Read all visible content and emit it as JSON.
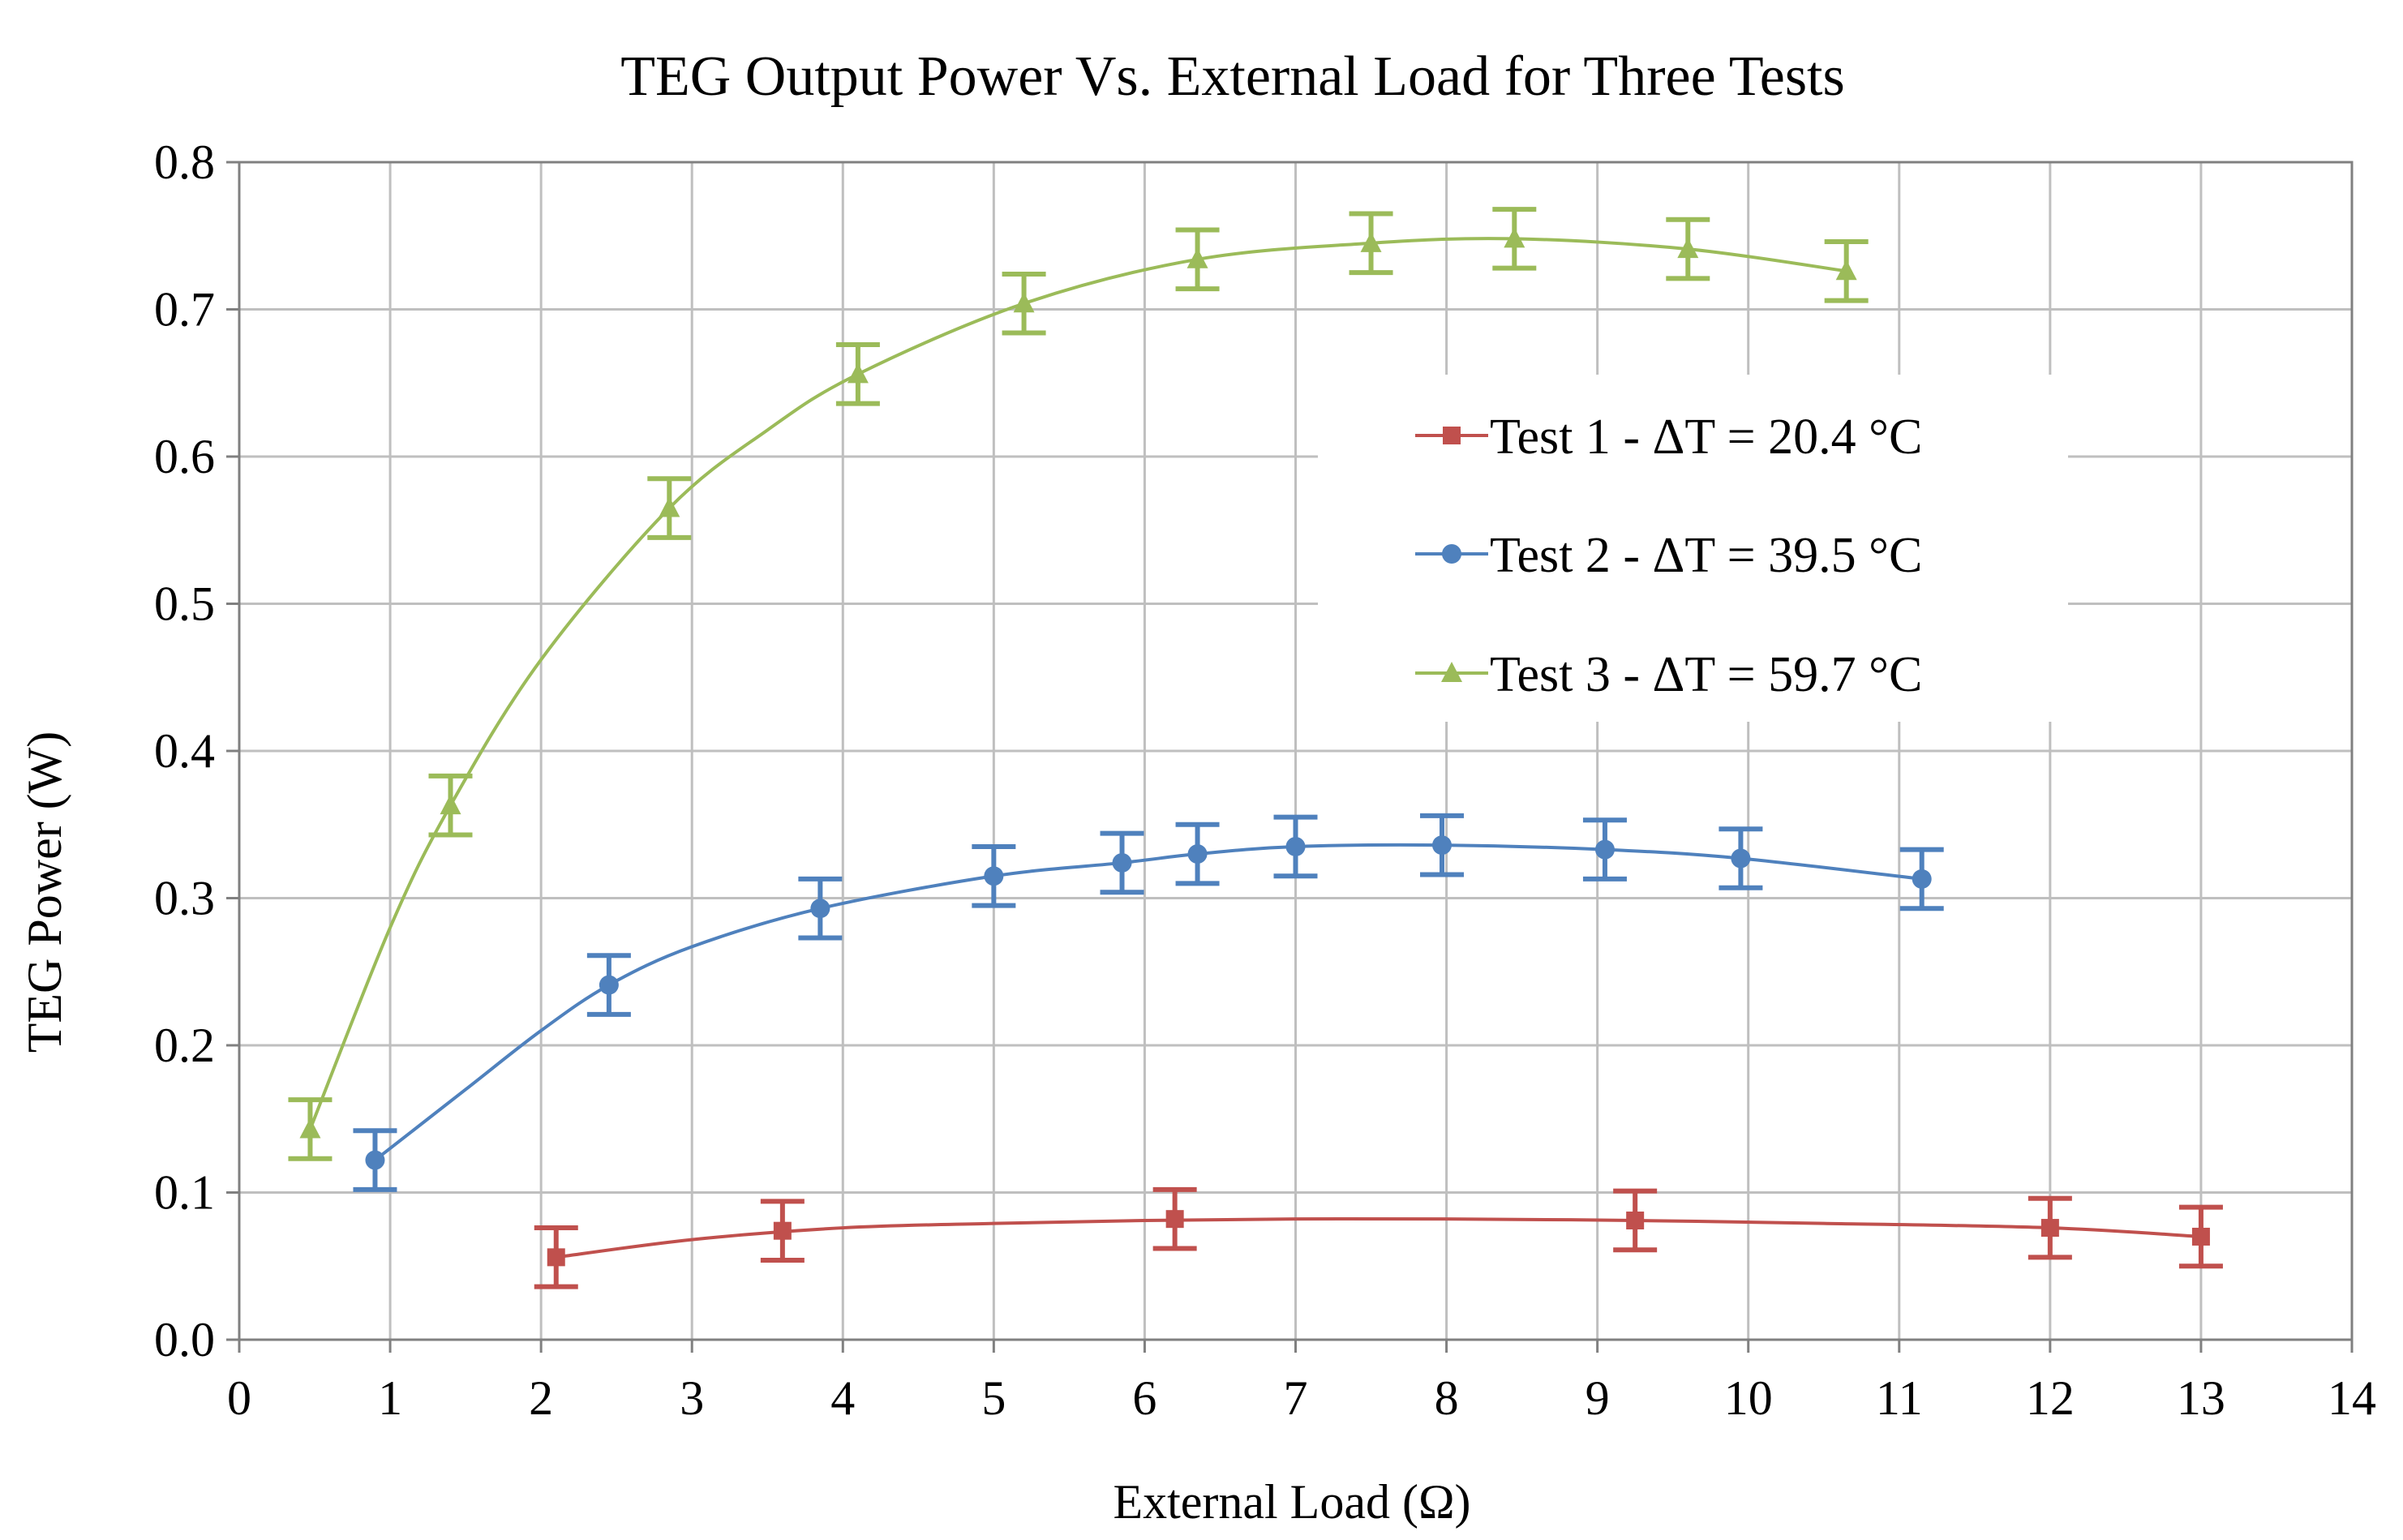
{
  "chart_data": {
    "type": "scatter",
    "title": "TEG Output Power Vs. External Load for Three Tests",
    "xlabel": "External Load (Ω)",
    "ylabel": "TEG Power (W)",
    "xlim": [
      0,
      14
    ],
    "ylim": [
      0,
      0.8
    ],
    "x_ticks": [
      "0",
      "1",
      "2",
      "3",
      "4",
      "5",
      "6",
      "7",
      "8",
      "9",
      "10",
      "11",
      "12",
      "13",
      "14"
    ],
    "y_ticks": [
      "0.0",
      "0.1",
      "0.2",
      "0.3",
      "0.4",
      "0.5",
      "0.6",
      "0.7",
      "0.8"
    ],
    "grid": true,
    "legend_position": "right-center",
    "series": [
      {
        "name": "Test 1 - ΔT = 20.4 °C",
        "color": "#C0504D",
        "marker": "square",
        "x": [
          2.1,
          3.6,
          6.2,
          9.25,
          12.0,
          13.0
        ],
        "y": [
          0.056,
          0.074,
          0.082,
          0.081,
          0.076,
          0.07
        ],
        "err": [
          0.02,
          0.02,
          0.02,
          0.02,
          0.02,
          0.02
        ],
        "curve": [
          [
            2.1,
            0.056
          ],
          [
            3.0,
            0.068
          ],
          [
            4.0,
            0.076
          ],
          [
            5.0,
            0.079
          ],
          [
            6.0,
            0.081
          ],
          [
            7.0,
            0.082
          ],
          [
            8.0,
            0.082
          ],
          [
            9.25,
            0.081
          ],
          [
            10.5,
            0.079
          ],
          [
            12.0,
            0.076
          ],
          [
            13.0,
            0.07
          ]
        ]
      },
      {
        "name": "Test 2 - ΔT = 39.5 °C",
        "color": "#4F81BD",
        "marker": "circle",
        "x": [
          0.9,
          2.45,
          3.85,
          5.0,
          5.85,
          6.35,
          7.0,
          7.97,
          9.05,
          9.95,
          11.15
        ],
        "y": [
          0.122,
          0.241,
          0.293,
          0.315,
          0.324,
          0.33,
          0.335,
          0.336,
          0.333,
          0.327,
          0.313
        ],
        "err": [
          0.02,
          0.02,
          0.02,
          0.02,
          0.02,
          0.02,
          0.02,
          0.02,
          0.02,
          0.02,
          0.02
        ],
        "curve": [
          [
            0.9,
            0.122
          ],
          [
            1.5,
            0.17
          ],
          [
            2.0,
            0.21
          ],
          [
            2.45,
            0.241
          ],
          [
            3.0,
            0.267
          ],
          [
            3.85,
            0.293
          ],
          [
            5.0,
            0.315
          ],
          [
            5.85,
            0.324
          ],
          [
            6.35,
            0.33
          ],
          [
            7.0,
            0.335
          ],
          [
            7.97,
            0.336
          ],
          [
            9.05,
            0.333
          ],
          [
            9.95,
            0.327
          ],
          [
            11.15,
            0.313
          ]
        ]
      },
      {
        "name": "Test 3 - ΔT = 59.7 °C",
        "color": "#9BBB59",
        "marker": "triangle",
        "x": [
          0.47,
          1.4,
          2.85,
          4.1,
          5.2,
          6.35,
          7.5,
          8.45,
          9.6,
          10.65
        ],
        "y": [
          0.143,
          0.363,
          0.565,
          0.656,
          0.704,
          0.734,
          0.745,
          0.748,
          0.741,
          0.726
        ],
        "err": [
          0.02,
          0.02,
          0.02,
          0.02,
          0.02,
          0.02,
          0.02,
          0.02,
          0.02,
          0.02
        ],
        "curve": [
          [
            0.47,
            0.143
          ],
          [
            1.0,
            0.28
          ],
          [
            1.4,
            0.363
          ],
          [
            2.0,
            0.462
          ],
          [
            2.85,
            0.565
          ],
          [
            3.5,
            0.618
          ],
          [
            4.1,
            0.656
          ],
          [
            5.2,
            0.704
          ],
          [
            6.35,
            0.734
          ],
          [
            7.5,
            0.745
          ],
          [
            8.45,
            0.748
          ],
          [
            9.6,
            0.741
          ],
          [
            10.65,
            0.726
          ]
        ]
      }
    ]
  }
}
